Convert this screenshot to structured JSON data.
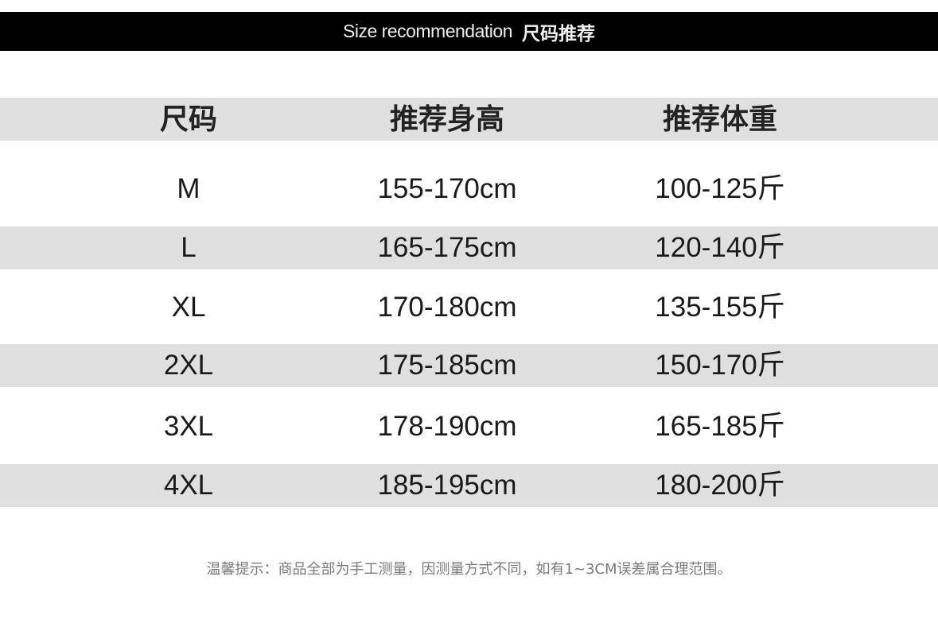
{
  "banner": {
    "title_en": "Size recommendation",
    "title_cn": "尺码推荐"
  },
  "table": {
    "headers": [
      "尺码",
      "推荐身高",
      "推荐体重"
    ],
    "rows": [
      [
        "M",
        "155-170cm",
        "100-125斤"
      ],
      [
        "L",
        "165-175cm",
        "120-140斤"
      ],
      [
        "XL",
        "170-180cm",
        "135-155斤"
      ],
      [
        "2XL",
        "175-185cm",
        "150-170斤"
      ],
      [
        "3XL",
        "178-190cm",
        "165-185斤"
      ],
      [
        "4XL",
        "185-195cm",
        "180-200斤"
      ]
    ]
  },
  "footer": {
    "note": "温馨提示：商品全部为手工测量，因测量方式不同，如有1~3CM误差属合理范围。"
  },
  "colors": {
    "banner": "#000000",
    "shade": "#e0e0e0",
    "note": "#7a7a7a"
  }
}
